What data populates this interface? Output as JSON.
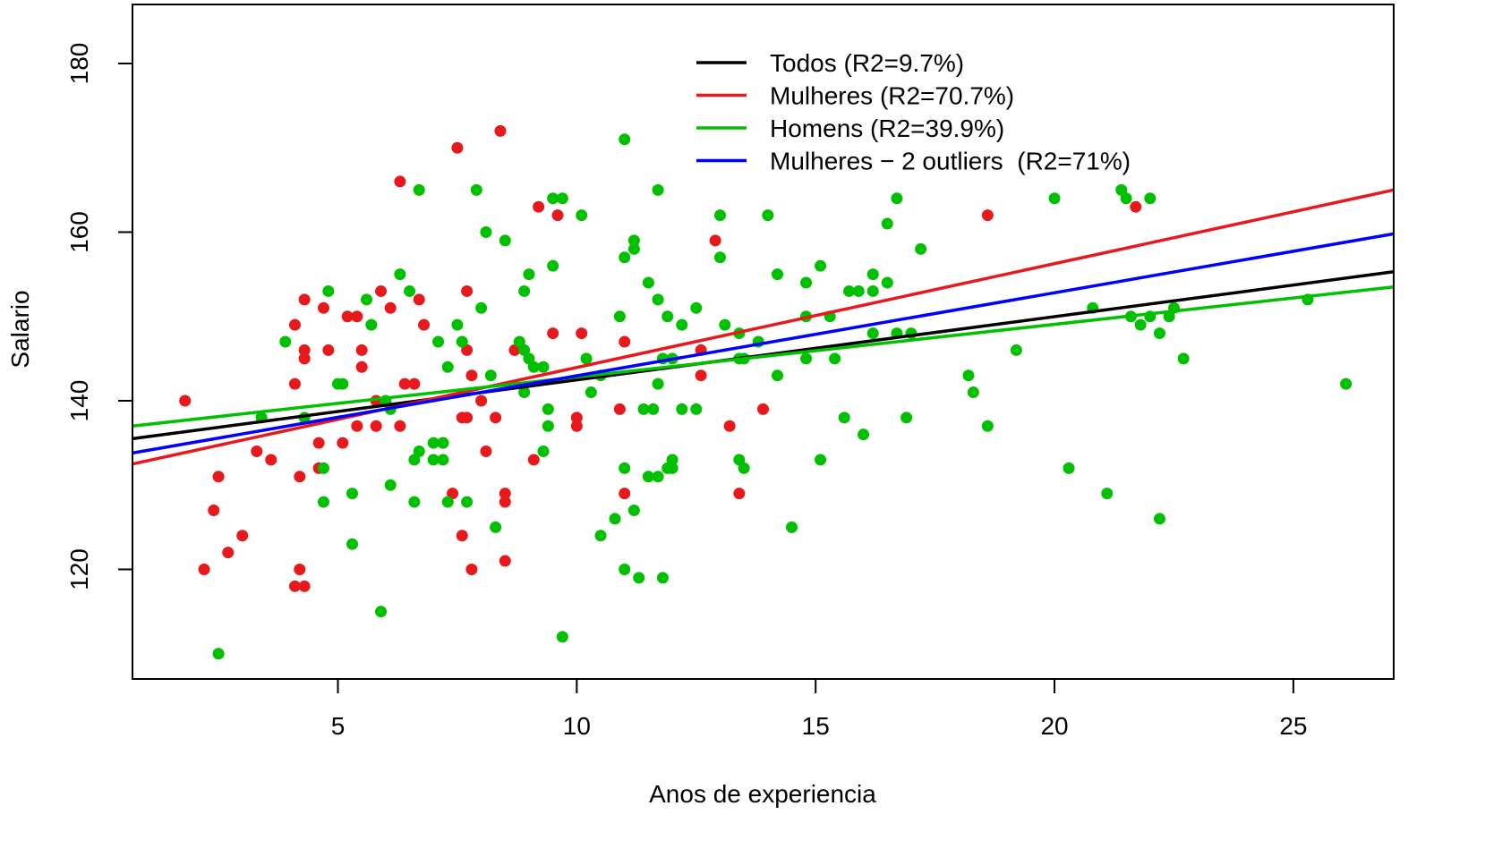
{
  "chart_data": {
    "type": "scatter",
    "title": "",
    "xlabel": "Anos de experiencia",
    "ylabel": "Salario",
    "xlim": [
      0.7,
      27.1
    ],
    "ylim": [
      107,
      187
    ],
    "xticks": [
      5,
      10,
      15,
      20,
      25
    ],
    "yticks": [
      120,
      140,
      160,
      180
    ],
    "grid": false,
    "legend_position": "top-right",
    "series": [
      {
        "name": "Mulheres",
        "kind": "points",
        "color": "#e8191c",
        "points": [
          [
            1.8,
            140
          ],
          [
            2.2,
            120
          ],
          [
            2.4,
            127
          ],
          [
            2.5,
            131
          ],
          [
            2.7,
            122
          ],
          [
            3.0,
            124
          ],
          [
            3.3,
            134
          ],
          [
            3.6,
            133
          ],
          [
            4.1,
            118
          ],
          [
            4.1,
            142
          ],
          [
            4.1,
            149
          ],
          [
            4.2,
            131
          ],
          [
            4.2,
            120
          ],
          [
            4.3,
            118
          ],
          [
            4.3,
            152
          ],
          [
            4.3,
            146
          ],
          [
            4.3,
            145
          ],
          [
            4.6,
            135
          ],
          [
            4.6,
            132
          ],
          [
            4.7,
            151
          ],
          [
            4.8,
            146
          ],
          [
            5.1,
            135
          ],
          [
            5.2,
            150
          ],
          [
            5.4,
            137
          ],
          [
            5.4,
            150
          ],
          [
            5.5,
            146
          ],
          [
            5.5,
            144
          ],
          [
            5.8,
            140
          ],
          [
            5.8,
            137
          ],
          [
            5.9,
            153
          ],
          [
            6.1,
            151
          ],
          [
            6.3,
            166
          ],
          [
            6.3,
            137
          ],
          [
            6.4,
            142
          ],
          [
            6.6,
            142
          ],
          [
            6.7,
            152
          ],
          [
            6.8,
            149
          ],
          [
            7.2,
            135
          ],
          [
            7.4,
            129
          ],
          [
            7.5,
            170
          ],
          [
            7.6,
            124
          ],
          [
            7.6,
            138
          ],
          [
            7.7,
            146
          ],
          [
            7.7,
            153
          ],
          [
            7.7,
            138
          ],
          [
            7.8,
            120
          ],
          [
            7.8,
            143
          ],
          [
            8.0,
            140
          ],
          [
            8.1,
            134
          ],
          [
            8.3,
            138
          ],
          [
            8.4,
            172
          ],
          [
            8.5,
            121
          ],
          [
            8.5,
            129
          ],
          [
            8.5,
            128
          ],
          [
            8.7,
            146
          ],
          [
            9.1,
            133
          ],
          [
            9.2,
            163
          ],
          [
            9.5,
            148
          ],
          [
            9.6,
            162
          ],
          [
            10.0,
            138
          ],
          [
            10.0,
            137
          ],
          [
            10.1,
            148
          ],
          [
            10.9,
            139
          ],
          [
            11.0,
            147
          ],
          [
            11.0,
            129
          ],
          [
            12.6,
            146
          ],
          [
            12.6,
            143
          ],
          [
            12.9,
            159
          ],
          [
            13.2,
            137
          ],
          [
            13.4,
            129
          ],
          [
            13.9,
            139
          ],
          [
            18.6,
            162
          ],
          [
            21.7,
            163
          ]
        ]
      },
      {
        "name": "Homens",
        "kind": "points",
        "color": "#00c000",
        "points": [
          [
            2.5,
            110
          ],
          [
            3.4,
            138
          ],
          [
            3.9,
            147
          ],
          [
            4.3,
            138
          ],
          [
            4.7,
            132
          ],
          [
            4.7,
            128
          ],
          [
            4.8,
            153
          ],
          [
            5.0,
            142
          ],
          [
            5.1,
            142
          ],
          [
            5.3,
            129
          ],
          [
            5.3,
            123
          ],
          [
            5.6,
            152
          ],
          [
            5.7,
            149
          ],
          [
            5.9,
            115
          ],
          [
            6.0,
            140
          ],
          [
            6.1,
            139
          ],
          [
            6.1,
            130
          ],
          [
            6.3,
            155
          ],
          [
            6.5,
            153
          ],
          [
            6.6,
            133
          ],
          [
            6.6,
            128
          ],
          [
            6.7,
            165
          ],
          [
            6.7,
            134
          ],
          [
            7.0,
            135
          ],
          [
            7.0,
            133
          ],
          [
            7.1,
            147
          ],
          [
            7.2,
            135
          ],
          [
            7.2,
            133
          ],
          [
            7.3,
            128
          ],
          [
            7.3,
            144
          ],
          [
            7.5,
            149
          ],
          [
            7.6,
            147
          ],
          [
            7.7,
            128
          ],
          [
            7.9,
            165
          ],
          [
            8.0,
            151
          ],
          [
            8.1,
            160
          ],
          [
            8.2,
            143
          ],
          [
            8.3,
            125
          ],
          [
            8.5,
            159
          ],
          [
            8.8,
            147
          ],
          [
            8.9,
            153
          ],
          [
            8.9,
            146
          ],
          [
            8.9,
            141
          ],
          [
            9.0,
            155
          ],
          [
            9.0,
            145
          ],
          [
            9.1,
            144
          ],
          [
            9.3,
            144
          ],
          [
            9.3,
            134
          ],
          [
            9.4,
            139
          ],
          [
            9.4,
            137
          ],
          [
            9.5,
            164
          ],
          [
            9.5,
            156
          ],
          [
            9.7,
            164
          ],
          [
            9.7,
            112
          ],
          [
            10.1,
            162
          ],
          [
            10.2,
            145
          ],
          [
            10.3,
            141
          ],
          [
            10.5,
            143
          ],
          [
            10.5,
            124
          ],
          [
            10.8,
            126
          ],
          [
            10.9,
            150
          ],
          [
            11.0,
            171
          ],
          [
            11.0,
            157
          ],
          [
            11.0,
            132
          ],
          [
            11.0,
            120
          ],
          [
            11.2,
            159
          ],
          [
            11.2,
            158
          ],
          [
            11.2,
            127
          ],
          [
            11.3,
            119
          ],
          [
            11.4,
            139
          ],
          [
            11.5,
            154
          ],
          [
            11.5,
            131
          ],
          [
            11.6,
            139
          ],
          [
            11.7,
            165
          ],
          [
            11.7,
            152
          ],
          [
            11.7,
            142
          ],
          [
            11.7,
            131
          ],
          [
            11.8,
            145
          ],
          [
            11.8,
            119
          ],
          [
            11.9,
            150
          ],
          [
            11.9,
            132
          ],
          [
            12.0,
            145
          ],
          [
            12.0,
            133
          ],
          [
            12.0,
            132
          ],
          [
            12.2,
            149
          ],
          [
            12.2,
            139
          ],
          [
            12.5,
            151
          ],
          [
            12.5,
            139
          ],
          [
            13.0,
            162
          ],
          [
            13.0,
            157
          ],
          [
            13.1,
            149
          ],
          [
            13.4,
            148
          ],
          [
            13.4,
            145
          ],
          [
            13.4,
            133
          ],
          [
            13.5,
            145
          ],
          [
            13.5,
            132
          ],
          [
            13.8,
            147
          ],
          [
            14.0,
            162
          ],
          [
            14.2,
            155
          ],
          [
            14.2,
            143
          ],
          [
            14.5,
            125
          ],
          [
            14.8,
            154
          ],
          [
            14.8,
            150
          ],
          [
            14.8,
            145
          ],
          [
            15.1,
            156
          ],
          [
            15.1,
            133
          ],
          [
            15.3,
            150
          ],
          [
            15.4,
            145
          ],
          [
            15.6,
            138
          ],
          [
            15.7,
            153
          ],
          [
            15.9,
            153
          ],
          [
            16.0,
            136
          ],
          [
            16.2,
            155
          ],
          [
            16.2,
            153
          ],
          [
            16.2,
            148
          ],
          [
            16.5,
            161
          ],
          [
            16.5,
            154
          ],
          [
            16.7,
            164
          ],
          [
            16.7,
            148
          ],
          [
            16.9,
            138
          ],
          [
            17.0,
            148
          ],
          [
            17.2,
            158
          ],
          [
            18.2,
            143
          ],
          [
            18.3,
            141
          ],
          [
            18.6,
            137
          ],
          [
            19.2,
            146
          ],
          [
            20.0,
            164
          ],
          [
            20.3,
            132
          ],
          [
            20.8,
            151
          ],
          [
            21.1,
            129
          ],
          [
            21.4,
            165
          ],
          [
            21.5,
            164
          ],
          [
            21.6,
            150
          ],
          [
            21.8,
            149
          ],
          [
            22.0,
            164
          ],
          [
            22.0,
            150
          ],
          [
            22.2,
            148
          ],
          [
            22.2,
            126
          ],
          [
            22.4,
            150
          ],
          [
            22.5,
            151
          ],
          [
            22.7,
            145
          ],
          [
            25.3,
            152
          ],
          [
            26.1,
            142
          ]
        ]
      }
    ],
    "lines": [
      {
        "name": "Todos (R2=9.7%)",
        "color": "#000000",
        "x": [
          0.7,
          27.1
        ],
        "y": [
          135.5,
          155.3
        ]
      },
      {
        "name": "Mulheres (R2=70.7%)",
        "color": "#e8191c",
        "x": [
          0.7,
          27.1
        ],
        "y": [
          132.5,
          165.0
        ]
      },
      {
        "name": "Homens (R2=39.9%)",
        "color": "#00c000",
        "x": [
          0.7,
          27.1
        ],
        "y": [
          137.0,
          153.5
        ]
      },
      {
        "name": "Mulheres − 2 outliers  (R2=71%)",
        "color": "#0000ff",
        "x": [
          0.7,
          27.1
        ],
        "y": [
          133.8,
          159.8
        ]
      }
    ]
  }
}
